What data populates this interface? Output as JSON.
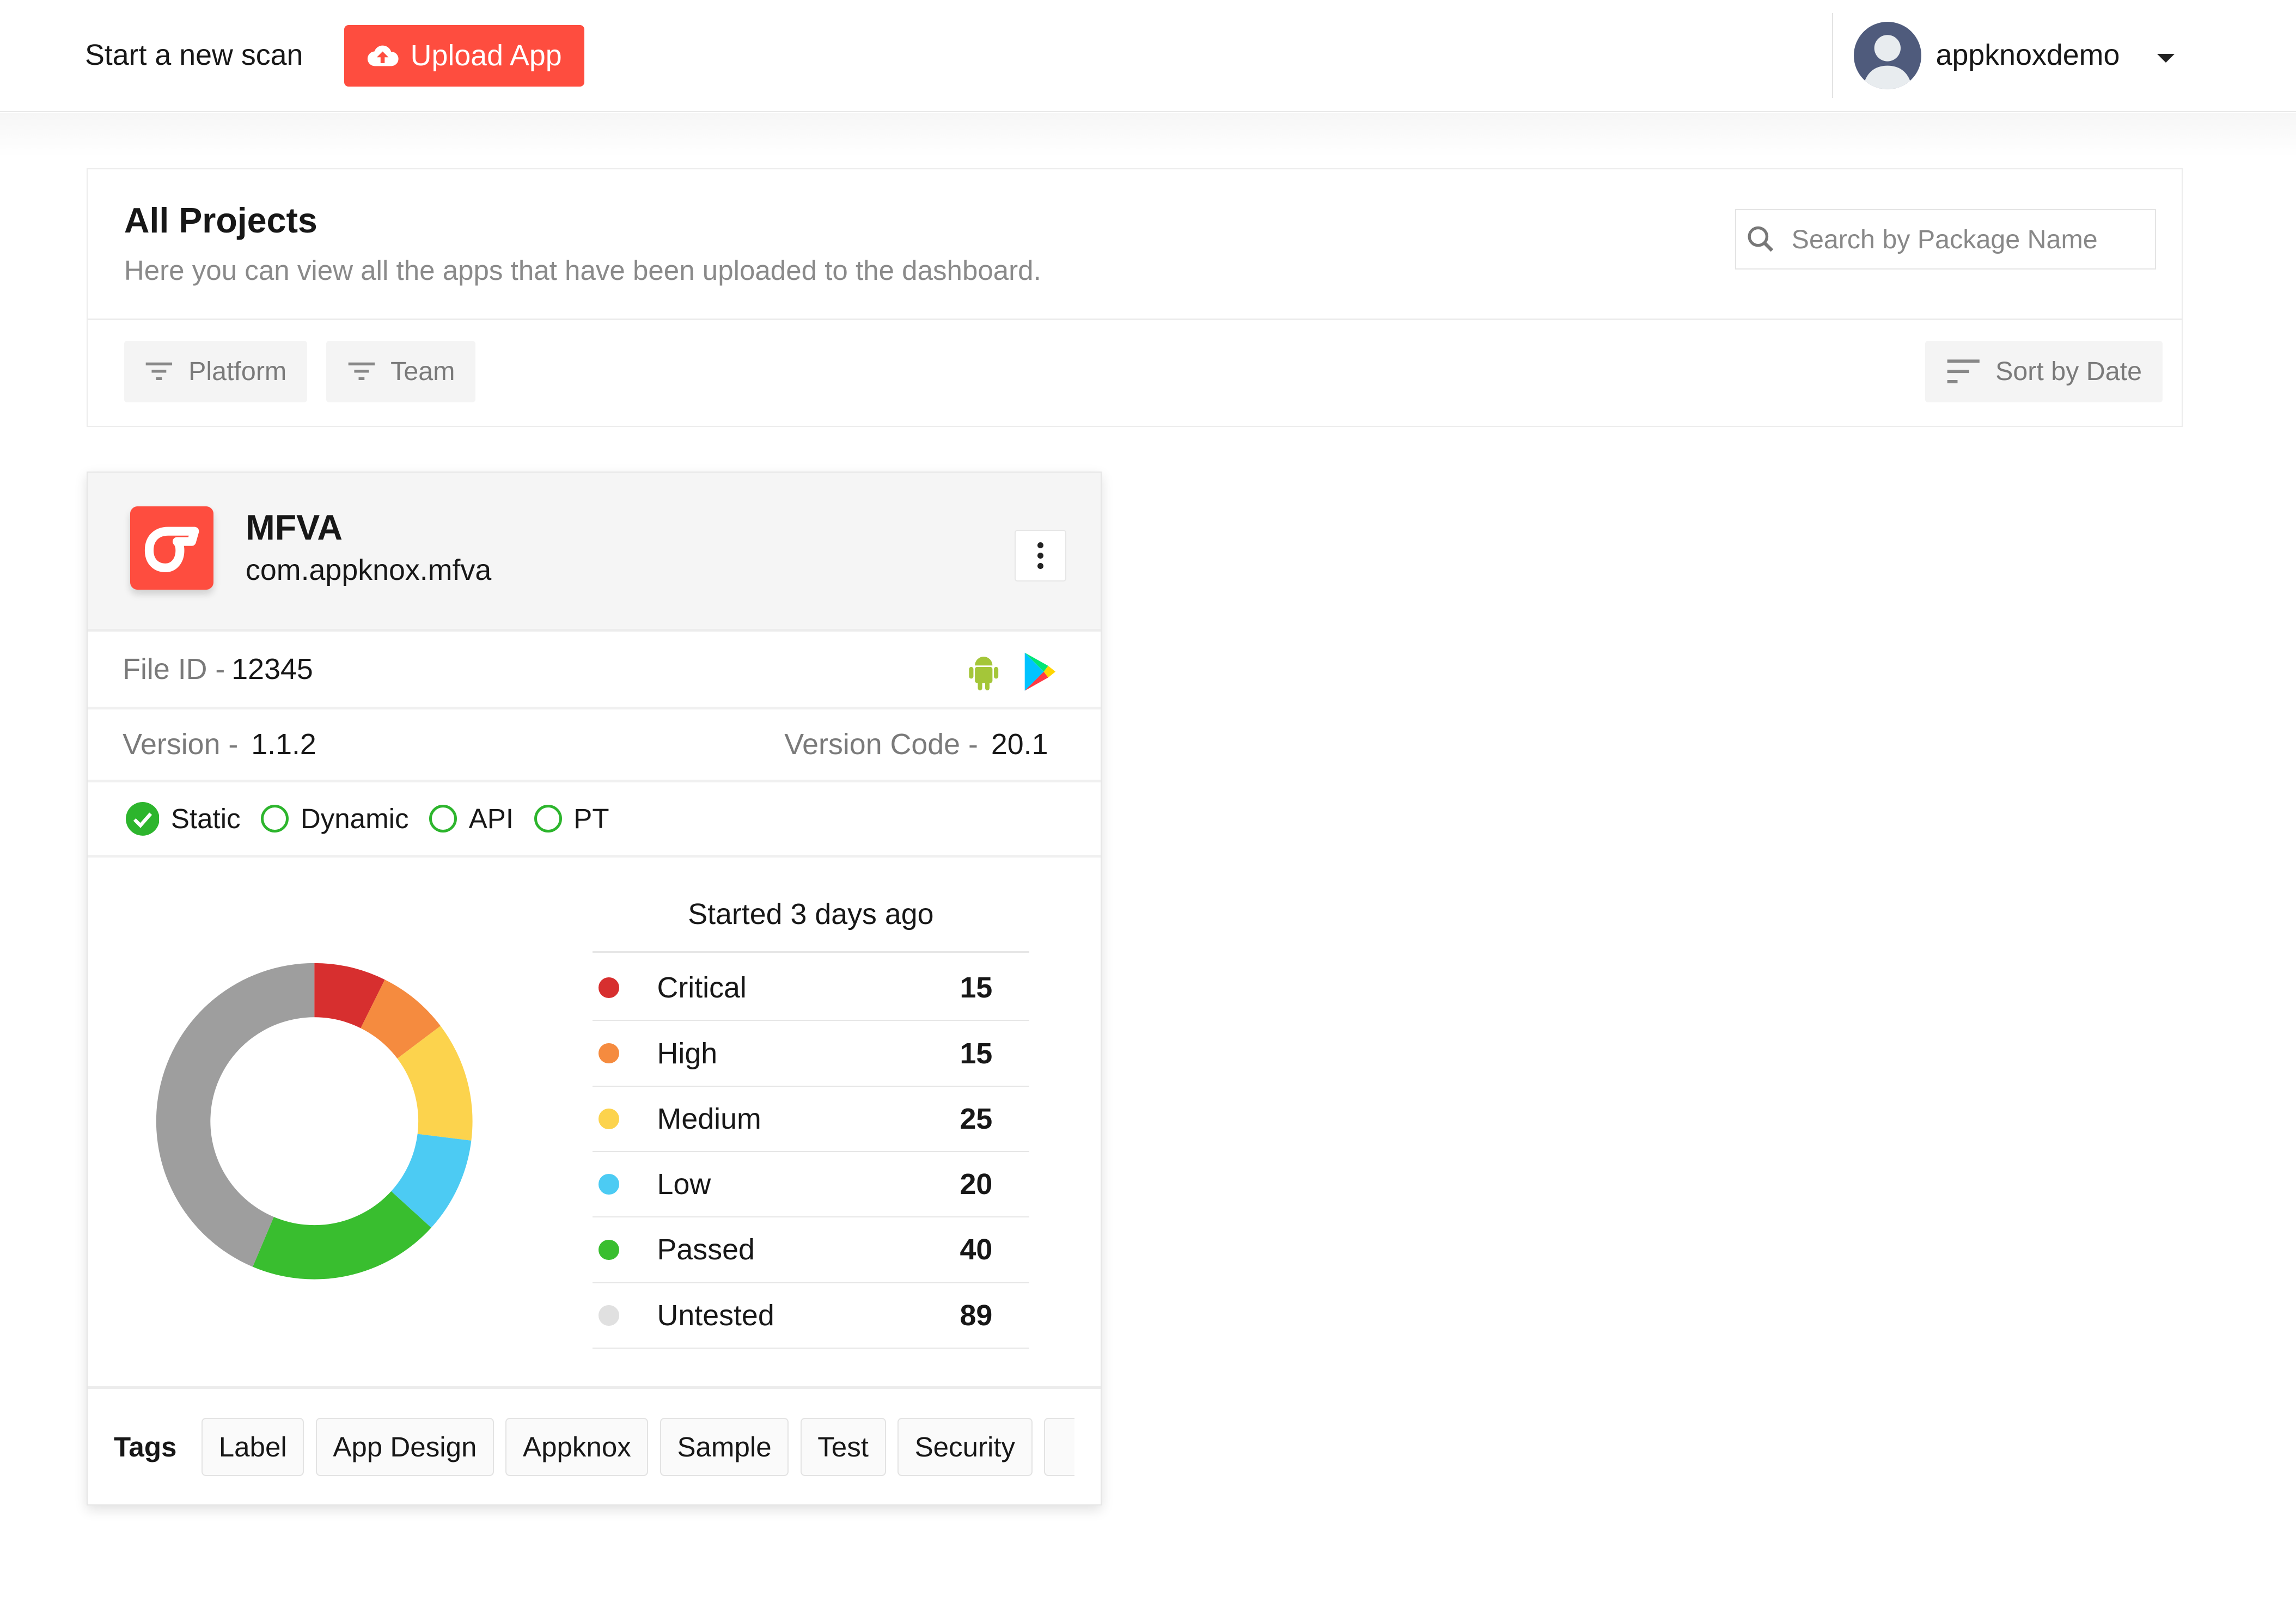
{
  "topbar": {
    "scan_label": "Start a new scan",
    "upload_label": "Upload App",
    "username": "appknoxdemo"
  },
  "projects": {
    "title": "All Projects",
    "description": "Here you can view all the apps that have been uploaded to the dashboard.",
    "search_placeholder": "Search by Package Name",
    "filters": [
      "Platform",
      "Team"
    ],
    "sort_label": "Sort by Date"
  },
  "card": {
    "name": "MFVA",
    "package": "com.appknox.mfva",
    "file_id_label": "File ID -",
    "file_id": "12345",
    "version_label": "Version -",
    "version": "1.1.2",
    "version_code_label": "Version Code -",
    "version_code": "20.1",
    "scans": [
      {
        "label": "Static",
        "done": true
      },
      {
        "label": "Dynamic",
        "done": false
      },
      {
        "label": "API",
        "done": false
      },
      {
        "label": "PT",
        "done": false
      }
    ],
    "started": "Started 3 days ago",
    "tags_label": "Tags",
    "tags": [
      "Label",
      "App Design",
      "Appknox",
      "Sample",
      "Test",
      "Security"
    ]
  },
  "chart_data": {
    "type": "pie",
    "categories": [
      "Critical",
      "High",
      "Medium",
      "Low",
      "Passed",
      "Untested"
    ],
    "values": [
      15,
      15,
      25,
      20,
      40,
      89
    ],
    "colors": [
      "#d72f2f",
      "#f58b3f",
      "#fcd34d",
      "#4ccbf3",
      "#39be2f",
      "#9e9e9e"
    ],
    "legend_colors": [
      "#d72f2f",
      "#f58b3f",
      "#fcd34d",
      "#4ccbf3",
      "#39be2f",
      "#e0e0e0"
    ]
  }
}
